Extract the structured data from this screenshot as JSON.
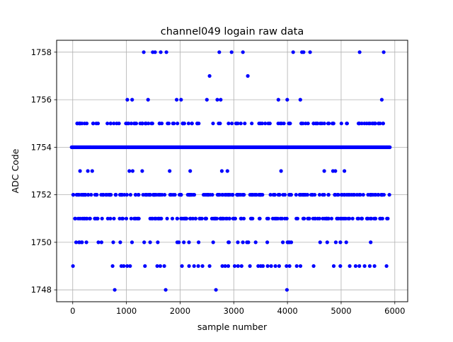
{
  "chart_data": {
    "type": "scatter",
    "title": "channel049 logain raw data",
    "xlabel": "sample number",
    "ylabel": "ADC Code",
    "xlim": [
      -300,
      6240
    ],
    "ylim": [
      1747.5,
      1758.5
    ],
    "xticks": [
      "0",
      "1000",
      "2000",
      "3000",
      "4000",
      "5000",
      "6000"
    ],
    "yticks": [
      "1748",
      "1750",
      "1752",
      "1754",
      "1756",
      "1758"
    ],
    "grid": true,
    "marker_color": "#0000ff",
    "n_samples": 5900,
    "sparse_levels": [
      {
        "y": 1758,
        "x": [
          1323,
          1490,
          1534,
          1640,
          1745,
          2730,
          2960,
          3170,
          4106,
          4270,
          4300,
          4422,
          5345,
          5793
        ]
      },
      {
        "y": 1757,
        "x": [
          2550,
          3262
        ]
      },
      {
        "y": 1749,
        "x": [
          4,
          743,
          905,
          950,
          1015,
          1068,
          1345,
          1574,
          1631,
          1706,
          2035,
          2167,
          2260,
          2339,
          2418,
          2550,
          2787,
          2840,
          2897,
          3016,
          3080,
          3146,
          3301,
          3455,
          3503,
          3543,
          3631,
          3697,
          3776,
          3846,
          3983,
          4040,
          4172,
          4242,
          4488,
          4862,
          4985,
          5160,
          5270,
          5340,
          5437,
          5533,
          5622,
          5846
        ]
      },
      {
        "y": 1748,
        "x": [
          783,
          1732,
          2668,
          3990
        ]
      }
    ],
    "dense_levels": [
      {
        "y": 1756,
        "x_range": [
          60,
          5900
        ],
        "fraction": 0.012
      },
      {
        "y": 1755,
        "x_range": [
          0,
          5900
        ],
        "fraction": 0.12
      },
      {
        "y": 1754,
        "x_range": [
          -20,
          5910
        ],
        "fraction": 0.45
      },
      {
        "y": 1753,
        "x_range": [
          80,
          5900
        ],
        "fraction": 0.015
      },
      {
        "y": 1752,
        "x_range": [
          0,
          5900
        ],
        "fraction": 0.2
      },
      {
        "y": 1751,
        "x_range": [
          0,
          5880
        ],
        "fraction": 0.16
      },
      {
        "y": 1750,
        "x_range": [
          0,
          5880
        ],
        "fraction": 0.04
      }
    ]
  }
}
